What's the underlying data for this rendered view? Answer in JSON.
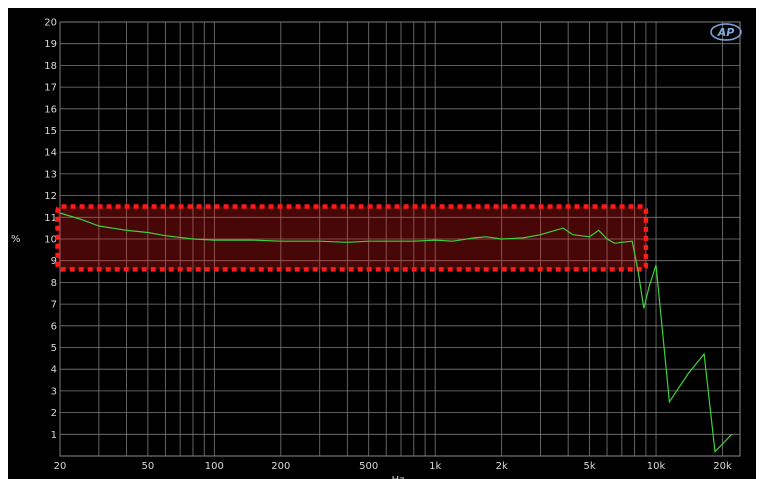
{
  "chart_data": {
    "type": "line",
    "title": "",
    "xlabel": "Hz",
    "ylabel": "%",
    "x_scale": "log",
    "xlim": [
      20,
      24000
    ],
    "ylim": [
      0,
      20
    ],
    "grid": true,
    "x_ticks": [
      20,
      50,
      100,
      200,
      500,
      1000,
      2000,
      5000,
      10000,
      20000
    ],
    "x_tick_labels": [
      "20",
      "50",
      "100",
      "200",
      "500",
      "1k",
      "2k",
      "5k",
      "10k",
      "20k"
    ],
    "x_minor_ticks": [
      30,
      40,
      60,
      70,
      80,
      90,
      300,
      400,
      600,
      700,
      800,
      900,
      3000,
      4000,
      6000,
      7000,
      8000,
      9000
    ],
    "y_ticks": [
      1,
      2,
      3,
      4,
      5,
      6,
      7,
      8,
      9,
      10,
      11,
      12,
      13,
      14,
      15,
      16,
      17,
      18,
      19,
      20
    ],
    "series": [
      {
        "color": "#3cd23c",
        "x": [
          20,
          25,
          30,
          40,
          50,
          60,
          80,
          100,
          150,
          200,
          300,
          400,
          500,
          600,
          800,
          1000,
          1200,
          1500,
          1700,
          2000,
          2500,
          3000,
          3500,
          3800,
          4200,
          5000,
          5500,
          6000,
          6500,
          7000,
          7800,
          8300,
          8800,
          9300,
          10000,
          11500,
          14000,
          16500,
          18500,
          22000
        ],
        "y": [
          11.2,
          10.9,
          10.6,
          10.4,
          10.3,
          10.15,
          10.0,
          9.95,
          9.95,
          9.9,
          9.9,
          9.85,
          9.9,
          9.9,
          9.9,
          9.95,
          9.9,
          10.05,
          10.1,
          10.0,
          10.05,
          10.2,
          10.4,
          10.5,
          10.2,
          10.1,
          10.4,
          10.0,
          9.8,
          9.85,
          9.9,
          8.5,
          6.8,
          7.8,
          8.8,
          2.5,
          3.8,
          4.7,
          0.2,
          1.0
        ]
      }
    ],
    "annotation": {
      "type": "highlight-box",
      "style": "dotted",
      "color": "#ff1a1a",
      "x_range": [
        19.5,
        9000
      ],
      "y_range": [
        8.6,
        11.5
      ]
    },
    "logo": "AP"
  }
}
